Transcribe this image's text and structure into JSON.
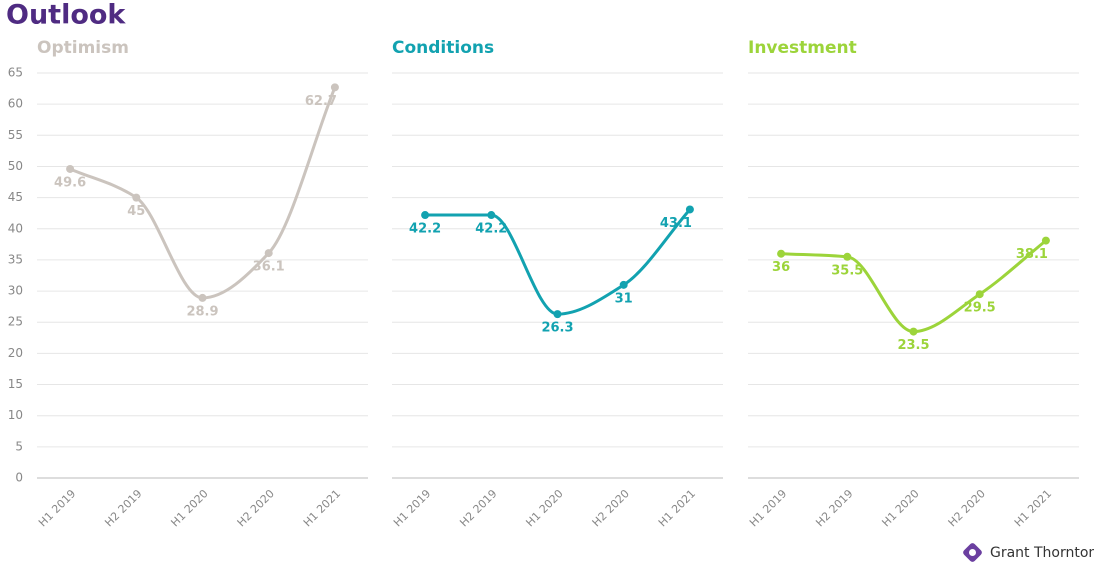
{
  "title": "Outlook",
  "brand": "Grant Thornton",
  "chart_data": [
    {
      "type": "line",
      "title": "Optimism",
      "categories": [
        "H1 2019",
        "H2 2019",
        "H1 2020",
        "H2 2020",
        "H1 2021"
      ],
      "values": [
        49.6,
        45,
        28.9,
        36.1,
        62.7
      ],
      "color": "#cbc4be",
      "ylim": [
        0,
        65
      ],
      "yticks": [
        0,
        5,
        10,
        15,
        20,
        25,
        30,
        35,
        40,
        45,
        50,
        55,
        60,
        65
      ],
      "grid": true
    },
    {
      "type": "line",
      "title": "Conditions",
      "categories": [
        "H1 2019",
        "H2 2019",
        "H1 2020",
        "H2 2020",
        "H1 2021"
      ],
      "values": [
        42.2,
        42.2,
        26.3,
        31,
        43.1
      ],
      "color": "#12a2b0",
      "ylim": [
        0,
        65
      ],
      "yticks": [
        0,
        5,
        10,
        15,
        20,
        25,
        30,
        35,
        40,
        45,
        50,
        55,
        60,
        65
      ],
      "grid": true
    },
    {
      "type": "line",
      "title": "Investment",
      "categories": [
        "H1 2019",
        "H2 2019",
        "H1 2020",
        "H2 2020",
        "H1 2021"
      ],
      "values": [
        36,
        35.5,
        23.5,
        29.5,
        38.1
      ],
      "color": "#9cd43a",
      "ylim": [
        0,
        65
      ],
      "yticks": [
        0,
        5,
        10,
        15,
        20,
        25,
        30,
        35,
        40,
        45,
        50,
        55,
        60,
        65
      ],
      "grid": true
    }
  ]
}
